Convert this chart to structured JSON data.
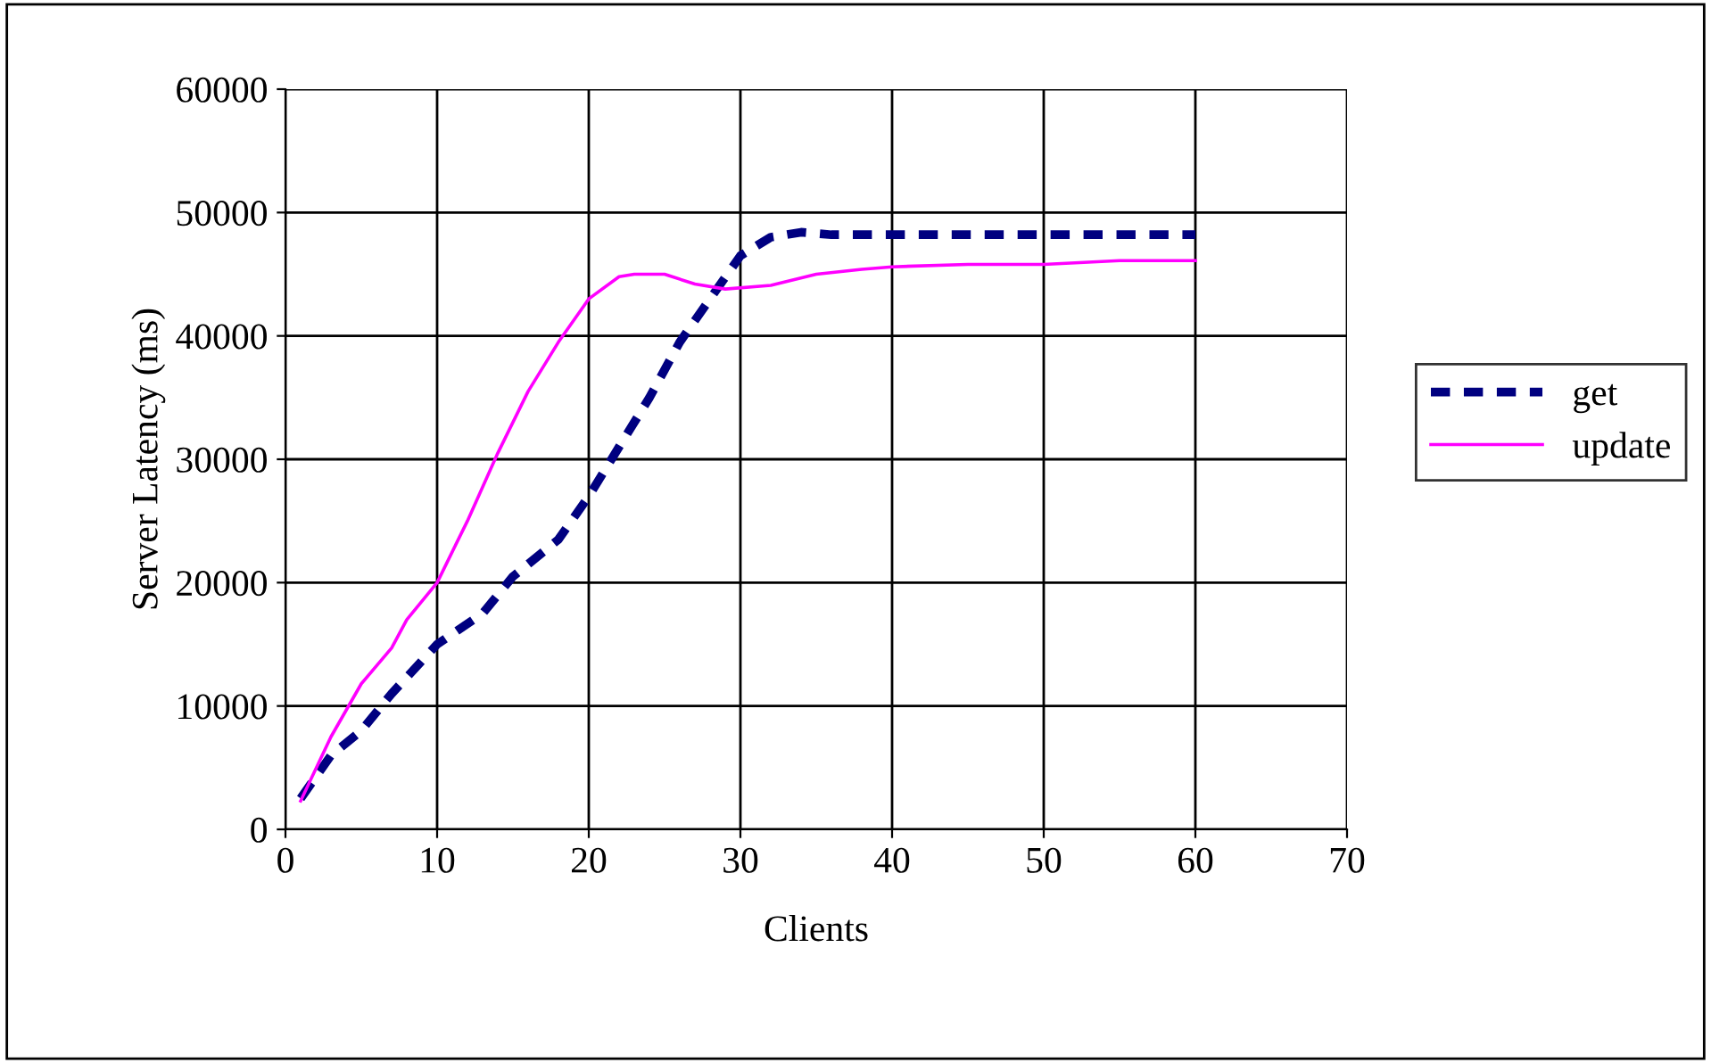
{
  "chart_data": {
    "type": "line",
    "xlabel": "Clients",
    "ylabel": "Server Latency (ms)",
    "xlim": [
      0,
      70
    ],
    "xticks": [
      0,
      10,
      20,
      30,
      40,
      50,
      60,
      70
    ],
    "ylim": [
      0,
      60000
    ],
    "yticks": [
      0,
      10000,
      20000,
      30000,
      40000,
      50000,
      60000
    ],
    "grid": true,
    "legend": "right",
    "series": [
      {
        "name": "get",
        "color": "#000080",
        "line_style": "dashed",
        "x": [
          1,
          3,
          5,
          7,
          10,
          13,
          15,
          18,
          20,
          22,
          24,
          26,
          28,
          30,
          32,
          34,
          36,
          40,
          50,
          60
        ],
        "values": [
          2500,
          6000,
          8000,
          11000,
          15000,
          17500,
          20500,
          23500,
          27000,
          31000,
          35000,
          39500,
          43000,
          46500,
          48000,
          48400,
          48200,
          48200,
          48200,
          48200
        ]
      },
      {
        "name": "update",
        "color": "#ff00ff",
        "line_style": "solid",
        "x": [
          1,
          3,
          5,
          7,
          8,
          10,
          12,
          14,
          16,
          18,
          20,
          22,
          23,
          25,
          27,
          29,
          32,
          35,
          38,
          40,
          45,
          50,
          55,
          60
        ],
        "values": [
          2300,
          7500,
          11800,
          14700,
          17000,
          20000,
          25000,
          30500,
          35500,
          39500,
          43000,
          44800,
          45000,
          45000,
          44200,
          43800,
          44100,
          45000,
          45400,
          45600,
          45800,
          45800,
          46100,
          46100
        ]
      }
    ]
  }
}
